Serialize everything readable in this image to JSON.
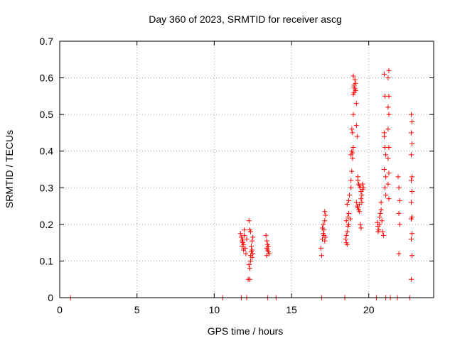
{
  "chart_data": {
    "type": "scatter",
    "title": "Day 360 of 2023, SRMTID for receiver ascg",
    "xlabel": "GPS time / hours",
    "ylabel": "SRMTID / TECUs",
    "xlim": [
      0,
      24.2
    ],
    "ylim": [
      0,
      0.7
    ],
    "xticks": [
      0,
      5,
      10,
      15,
      20
    ],
    "yticks": [
      0,
      0.1,
      0.2,
      0.3,
      0.4,
      0.5,
      0.6,
      0.7
    ],
    "xtick_labels": [
      "0",
      "5",
      "10",
      "15",
      "20"
    ],
    "ytick_labels": [
      "0",
      "0.1",
      "0.2",
      "0.3",
      "0.4",
      "0.5",
      "0.6",
      "0.7"
    ],
    "grid": true,
    "marker": "+",
    "color": "#ff0000",
    "series": [
      {
        "name": "SRMTID",
        "points": [
          [
            0.7,
            0.0
          ],
          [
            10.55,
            0.0
          ],
          [
            11.75,
            0.0
          ],
          [
            12.1,
            0.0
          ],
          [
            13.45,
            0.0
          ],
          [
            14.0,
            0.0
          ],
          [
            16.95,
            0.0
          ],
          [
            18.45,
            0.0
          ],
          [
            20.5,
            0.0
          ],
          [
            21.1,
            0.0
          ],
          [
            21.4,
            0.0
          ],
          [
            21.85,
            0.0
          ],
          [
            22.65,
            0.0
          ],
          [
            11.7,
            0.175
          ],
          [
            11.75,
            0.165
          ],
          [
            11.8,
            0.155
          ],
          [
            11.85,
            0.15
          ],
          [
            11.9,
            0.145
          ],
          [
            11.95,
            0.185
          ],
          [
            11.8,
            0.14
          ],
          [
            11.9,
            0.13
          ],
          [
            11.85,
            0.16
          ],
          [
            11.95,
            0.17
          ],
          [
            12.0,
            0.135
          ],
          [
            12.05,
            0.12
          ],
          [
            12.1,
            0.16
          ],
          [
            12.25,
            0.21
          ],
          [
            12.3,
            0.185
          ],
          [
            12.35,
            0.18
          ],
          [
            12.25,
            0.09
          ],
          [
            12.3,
            0.08
          ],
          [
            12.2,
            0.05
          ],
          [
            12.3,
            0.05
          ],
          [
            12.35,
            0.115
          ],
          [
            12.4,
            0.125
          ],
          [
            12.45,
            0.13
          ],
          [
            12.5,
            0.12
          ],
          [
            12.4,
            0.14
          ],
          [
            12.45,
            0.155
          ],
          [
            12.5,
            0.165
          ],
          [
            12.35,
            0.1
          ],
          [
            12.45,
            0.11
          ],
          [
            13.35,
            0.17
          ],
          [
            13.4,
            0.155
          ],
          [
            13.45,
            0.145
          ],
          [
            13.5,
            0.14
          ],
          [
            13.4,
            0.135
          ],
          [
            13.45,
            0.13
          ],
          [
            13.5,
            0.125
          ],
          [
            13.55,
            0.12
          ],
          [
            13.4,
            0.115
          ],
          [
            16.9,
            0.135
          ],
          [
            16.95,
            0.115
          ],
          [
            17.0,
            0.16
          ],
          [
            17.05,
            0.175
          ],
          [
            17.1,
            0.185
          ],
          [
            17.0,
            0.19
          ],
          [
            17.05,
            0.2
          ],
          [
            17.15,
            0.21
          ],
          [
            17.2,
            0.225
          ],
          [
            17.15,
            0.235
          ],
          [
            17.1,
            0.17
          ],
          [
            17.2,
            0.165
          ],
          [
            17.15,
            0.155
          ],
          [
            18.5,
            0.16
          ],
          [
            18.55,
            0.15
          ],
          [
            18.6,
            0.145
          ],
          [
            18.55,
            0.17
          ],
          [
            18.6,
            0.18
          ],
          [
            18.65,
            0.195
          ],
          [
            18.55,
            0.21
          ],
          [
            18.65,
            0.22
          ],
          [
            18.7,
            0.23
          ],
          [
            18.6,
            0.255
          ],
          [
            18.7,
            0.265
          ],
          [
            18.75,
            0.28
          ],
          [
            18.7,
            0.2
          ],
          [
            18.8,
            0.215
          ],
          [
            18.85,
            0.3
          ],
          [
            18.85,
            0.32
          ],
          [
            18.9,
            0.345
          ],
          [
            18.95,
            0.38
          ],
          [
            18.85,
            0.39
          ],
          [
            18.9,
            0.4
          ],
          [
            18.95,
            0.395
          ],
          [
            19.0,
            0.41
          ],
          [
            18.9,
            0.46
          ],
          [
            18.95,
            0.45
          ],
          [
            19.0,
            0.5
          ],
          [
            19.05,
            0.56
          ],
          [
            19.05,
            0.58
          ],
          [
            19.1,
            0.595
          ],
          [
            19.0,
            0.605
          ],
          [
            19.05,
            0.575
          ],
          [
            19.1,
            0.57
          ],
          [
            19.15,
            0.565
          ],
          [
            19.0,
            0.555
          ],
          [
            19.15,
            0.585
          ],
          [
            19.2,
            0.53
          ],
          [
            19.2,
            0.47
          ],
          [
            19.25,
            0.44
          ],
          [
            19.2,
            0.26
          ],
          [
            19.25,
            0.25
          ],
          [
            19.3,
            0.245
          ],
          [
            19.35,
            0.24
          ],
          [
            19.4,
            0.235
          ],
          [
            19.3,
            0.32
          ],
          [
            19.35,
            0.31
          ],
          [
            19.4,
            0.305
          ],
          [
            19.45,
            0.3
          ],
          [
            19.5,
            0.29
          ],
          [
            19.55,
            0.28
          ],
          [
            19.6,
            0.295
          ],
          [
            19.5,
            0.27
          ],
          [
            19.45,
            0.2
          ],
          [
            19.5,
            0.19
          ],
          [
            19.55,
            0.26
          ],
          [
            19.6,
            0.31
          ],
          [
            19.65,
            0.3
          ],
          [
            19.3,
            0.33
          ],
          [
            19.4,
            0.255
          ],
          [
            20.55,
            0.205
          ],
          [
            20.6,
            0.195
          ],
          [
            20.65,
            0.185
          ],
          [
            20.7,
            0.22
          ],
          [
            20.75,
            0.23
          ],
          [
            20.8,
            0.24
          ],
          [
            20.6,
            0.18
          ],
          [
            20.7,
            0.2
          ],
          [
            20.85,
            0.21
          ],
          [
            20.9,
            0.18
          ],
          [
            20.95,
            0.17
          ],
          [
            20.8,
            0.26
          ],
          [
            21.0,
            0.61
          ],
          [
            21.05,
            0.55
          ],
          [
            21.0,
            0.44
          ],
          [
            21.05,
            0.41
          ],
          [
            21.0,
            0.35
          ],
          [
            21.1,
            0.33
          ],
          [
            21.05,
            0.3
          ],
          [
            21.1,
            0.28
          ],
          [
            21.0,
            0.45
          ],
          [
            21.1,
            0.39
          ],
          [
            21.3,
            0.62
          ],
          [
            21.25,
            0.6
          ],
          [
            21.3,
            0.55
          ],
          [
            21.25,
            0.52
          ],
          [
            21.3,
            0.5
          ],
          [
            21.25,
            0.46
          ],
          [
            21.3,
            0.41
          ],
          [
            21.25,
            0.38
          ],
          [
            21.3,
            0.34
          ],
          [
            21.25,
            0.31
          ],
          [
            21.3,
            0.27
          ],
          [
            21.9,
            0.33
          ],
          [
            21.95,
            0.3
          ],
          [
            22.0,
            0.265
          ],
          [
            21.95,
            0.23
          ],
          [
            22.0,
            0.2
          ],
          [
            21.95,
            0.12
          ],
          [
            22.75,
            0.5
          ],
          [
            22.8,
            0.48
          ],
          [
            22.75,
            0.45
          ],
          [
            22.8,
            0.42
          ],
          [
            22.75,
            0.39
          ],
          [
            22.8,
            0.33
          ],
          [
            22.75,
            0.32
          ],
          [
            22.8,
            0.29
          ],
          [
            22.75,
            0.26
          ],
          [
            22.8,
            0.22
          ],
          [
            22.75,
            0.215
          ],
          [
            22.8,
            0.175
          ],
          [
            22.75,
            0.16
          ],
          [
            22.8,
            0.115
          ],
          [
            22.75,
            0.05
          ]
        ]
      }
    ]
  }
}
